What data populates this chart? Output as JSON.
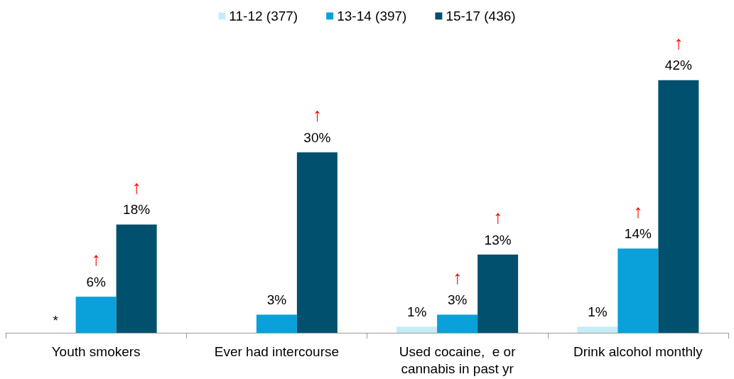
{
  "chart_data": {
    "type": "bar",
    "categories": [
      "Youth smokers",
      "Ever had intercourse",
      "Used cocaine,  e or\ncannabis in past yr",
      "Drink alcohol monthly"
    ],
    "series": [
      {
        "name": "11-12 (377)",
        "color": "#c6ecf8",
        "values": [
          null,
          null,
          1,
          1
        ],
        "value_labels": [
          "*",
          null,
          "1%",
          "1%"
        ]
      },
      {
        "name": "13-14 (397)",
        "color": "#0aa0d9",
        "values": [
          6,
          3,
          3,
          14
        ],
        "value_labels": [
          "↑\n6%",
          "3%",
          "↑\n3%",
          "↑\n14%"
        ]
      },
      {
        "name": "15-17 (436)",
        "color": "#00506e",
        "values": [
          18,
          30,
          13,
          42
        ],
        "value_labels": [
          "↑\n18%",
          "↑\n30%",
          "↑\n13%",
          "↑\n42%"
        ]
      }
    ],
    "legend": "top",
    "grid": false
  }
}
